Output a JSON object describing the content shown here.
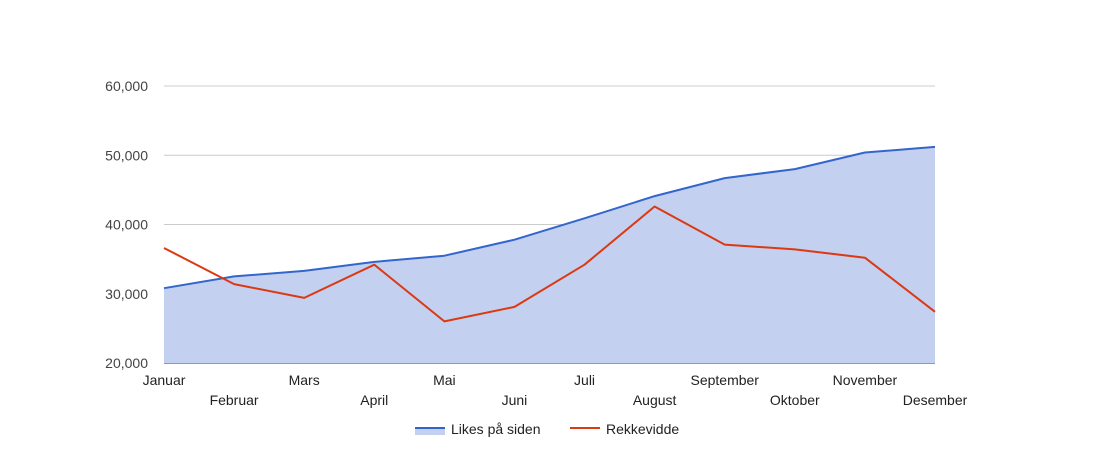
{
  "chart_data": {
    "type": "area",
    "title": "",
    "xlabel": "",
    "ylabel": "",
    "ylim": [
      20000,
      60000
    ],
    "yticks": [
      20000,
      30000,
      40000,
      50000,
      60000
    ],
    "ytick_labels": [
      "20,000",
      "30,000",
      "40,000",
      "50,000",
      "60,000"
    ],
    "grid": true,
    "legend_position": "bottom",
    "categories": [
      "Januar",
      "Februar",
      "Mars",
      "April",
      "Mai",
      "Juni",
      "Juli",
      "August",
      "September",
      "Oktober",
      "November",
      "Desember"
    ],
    "series": [
      {
        "name": "Likes på siden",
        "type": "area",
        "color": "#3366cc",
        "fill": "#c3d0f0",
        "values": [
          30800,
          32500,
          33300,
          34600,
          35500,
          37800,
          40900,
          44100,
          46700,
          48000,
          50400,
          51200
        ]
      },
      {
        "name": "Rekkevidde",
        "type": "line",
        "color": "#dc3912",
        "values": [
          36600,
          31400,
          29400,
          34200,
          26000,
          28100,
          34200,
          42600,
          37100,
          36400,
          35200,
          27400
        ]
      }
    ]
  }
}
